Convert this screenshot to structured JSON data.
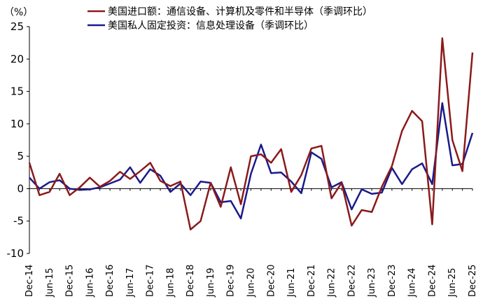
{
  "chart_data": {
    "type": "line",
    "unit_label": "（%）",
    "ylim": [
      -10,
      25
    ],
    "yticks": [
      -10,
      -5,
      0,
      5,
      10,
      15,
      20,
      25
    ],
    "grid": false,
    "legend_position": "top",
    "x_tick_labels": [
      "Dec-14",
      "Jun-15",
      "Dec-15",
      "Jun-16",
      "Dec-16",
      "Jun-17",
      "Dec-17",
      "Jun-18",
      "Dec-18",
      "Jun-19",
      "Dec-19",
      "Jun-20",
      "Dec-20",
      "Jun-21",
      "Dec-21",
      "Jun-22",
      "Dec-22",
      "Jun-23",
      "Dec-23",
      "Jun-24",
      "Dec-24",
      "Jun-25",
      "Dec-25"
    ],
    "x": [
      "Dec-14",
      "Mar-15",
      "Jun-15",
      "Sep-15",
      "Dec-15",
      "Mar-16",
      "Jun-16",
      "Sep-16",
      "Dec-16",
      "Mar-17",
      "Jun-17",
      "Sep-17",
      "Dec-17",
      "Mar-18",
      "Jun-18",
      "Sep-18",
      "Dec-18",
      "Mar-19",
      "Jun-19",
      "Sep-19",
      "Dec-19",
      "Mar-20",
      "Jun-20",
      "Sep-20",
      "Dec-20",
      "Mar-21",
      "Jun-21",
      "Sep-21",
      "Dec-21",
      "Mar-22",
      "Jun-22",
      "Sep-22",
      "Dec-22",
      "Mar-23",
      "Jun-23",
      "Sep-23",
      "Dec-23",
      "Mar-24",
      "Jun-24",
      "Sep-24",
      "Dec-24",
      "Mar-25",
      "Jun-25",
      "Sep-25",
      "Dec-25"
    ],
    "series": [
      {
        "name": "美国进口额：通信设备、计算机及零件和半导体（季调环比）",
        "color": "#8b1a1a",
        "values": [
          4.0,
          -1.0,
          -0.5,
          2.3,
          -1.0,
          0.2,
          1.7,
          0.3,
          1.2,
          2.6,
          1.5,
          2.7,
          4.0,
          1.2,
          0.4,
          1.1,
          -6.3,
          -5.0,
          0.9,
          -2.8,
          3.3,
          -2.4,
          5.0,
          5.3,
          4.0,
          6.1,
          -0.5,
          2.1,
          6.2,
          6.6,
          -1.5,
          0.9,
          -5.7,
          -3.3,
          -3.6,
          0.3,
          3.5,
          8.9,
          12.0,
          10.4,
          -5.5,
          23.2,
          7.5,
          2.7,
          21.0
        ]
      },
      {
        "name": "美国私人固定投资：信息处理设备（季调环比）",
        "color": "#1a1a8b",
        "values": [
          1.7,
          0.0,
          1.0,
          1.3,
          0.0,
          -0.2,
          -0.1,
          0.2,
          0.8,
          1.4,
          3.3,
          0.9,
          3.0,
          2.0,
          -0.5,
          0.8,
          -1.0,
          1.1,
          0.9,
          -2.1,
          -1.9,
          -4.6,
          2.3,
          6.8,
          2.4,
          2.5,
          1.1,
          -0.7,
          5.6,
          4.6,
          0.2,
          1.0,
          -3.2,
          -0.1,
          -0.8,
          -0.6,
          3.2,
          0.7,
          3.0,
          3.9,
          0.7,
          13.2,
          3.6,
          3.8,
          8.6
        ]
      }
    ]
  }
}
